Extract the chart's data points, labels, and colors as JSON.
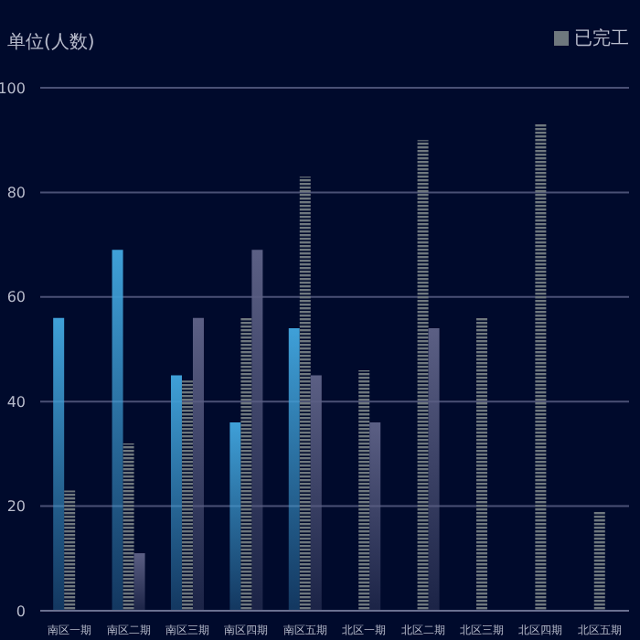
{
  "chart_data": {
    "type": "bar",
    "ylabel": "单位(人数)",
    "categories": [
      "南区一期",
      "南区二期",
      "南区三期",
      "南区四期",
      "南区五期",
      "北区一期",
      "北区二期",
      "北区三期",
      "北区四期",
      "北区五期"
    ],
    "series": [
      {
        "color": "#3fa0d8",
        "values": [
          56,
          69,
          45,
          36,
          54,
          null,
          null,
          null,
          null,
          null
        ]
      },
      {
        "name": "已完工",
        "color": "#6f787e",
        "values": [
          23,
          32,
          44,
          56,
          83,
          46,
          90,
          56,
          93,
          19
        ]
      },
      {
        "color": "#5b5f84",
        "values": [
          null,
          11,
          56,
          69,
          45,
          36,
          54,
          null,
          null,
          null
        ]
      }
    ],
    "ylim": [
      0,
      100
    ],
    "yticks": [
      0,
      20,
      40,
      60,
      80,
      100
    ],
    "grid": "y",
    "legend": "top right"
  }
}
